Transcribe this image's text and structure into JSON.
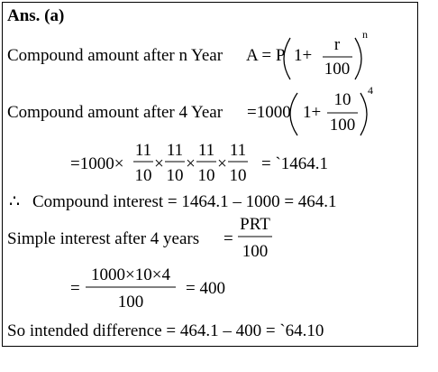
{
  "title": "Ans. (a)",
  "line1": {
    "label": "Compound amount after n Year",
    "lhs": "A = P",
    "one_plus": "1+",
    "num": "r",
    "den": "100",
    "exp": "n"
  },
  "line2": {
    "label": "Compound amount after 4 Year",
    "lhs": "=1000",
    "one_plus": "1+",
    "num": "10",
    "den": "100",
    "exp": "4"
  },
  "line3": {
    "lhs": "=1000×",
    "fractions": [
      {
        "num": "11",
        "den": "10"
      },
      {
        "num": "11",
        "den": "10"
      },
      {
        "num": "11",
        "den": "10"
      },
      {
        "num": "11",
        "den": "10"
      }
    ],
    "times": "×",
    "result": "= `1464.1"
  },
  "line4": {
    "therefore": "∴",
    "text": "Compound interest = 1464.1 – 1000 = 464.1"
  },
  "line5": {
    "label": "Simple interest after 4 years",
    "eq": "=",
    "num": "PRT",
    "den": "100"
  },
  "line6": {
    "eq": "=",
    "num": "1000×10×4",
    "den": "100",
    "result": "= 400"
  },
  "line7": "So intended difference = 464.1 – 400 = `64.10"
}
